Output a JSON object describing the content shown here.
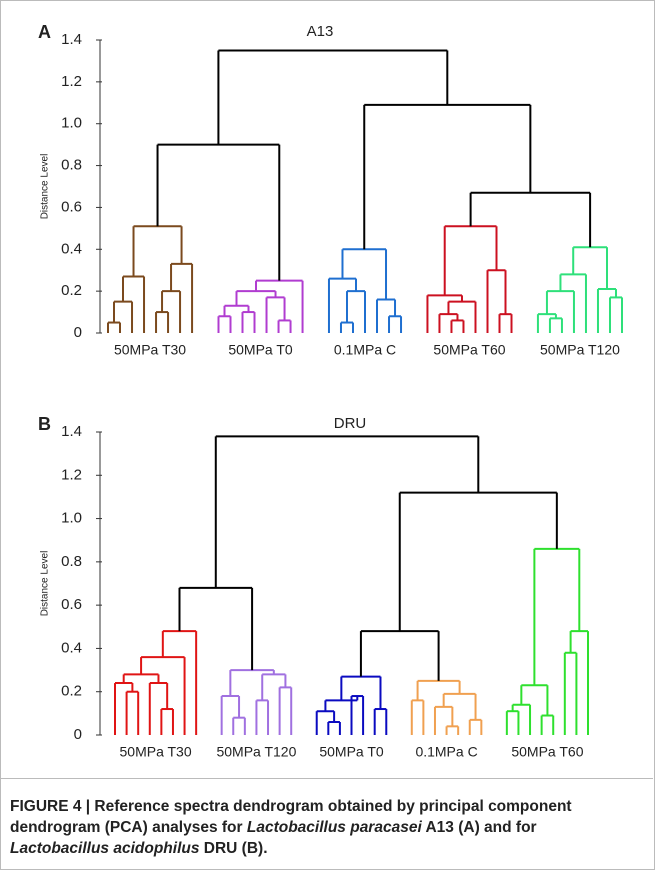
{
  "chart_data": [
    {
      "type": "dendrogram",
      "panel": "A",
      "title": "A13",
      "y_label": "Distance Level",
      "ylim": [
        0,
        1.4
      ],
      "yticks": [
        0,
        0.2,
        0.4,
        0.6,
        0.8,
        {
          "value": 1,
          "label": "1.0"
        },
        1.2,
        1.4
      ],
      "tree": {
        "height": 1.35,
        "children": [
          {
            "height": 0.9,
            "children": [
              {
                "label": "50MPa T30",
                "color": "#7b4a1e",
                "height": 0.51,
                "children": [
                  {
                    "height": 0.27,
                    "children": [
                      {
                        "height": 0.15,
                        "children": [
                          {
                            "height": 0.05,
                            "children": [
                              0,
                              0
                            ]
                          },
                          0
                        ]
                      },
                      0
                    ]
                  },
                  {
                    "height": 0.33,
                    "children": [
                      {
                        "height": 0.2,
                        "children": [
                          {
                            "height": 0.1,
                            "children": [
                              0,
                              0
                            ]
                          },
                          0
                        ]
                      },
                      0
                    ]
                  }
                ]
              },
              {
                "label": "50MPa T0",
                "color": "#b03cd0",
                "height": 0.25,
                "children": [
                  {
                    "height": 0.2,
                    "children": [
                      {
                        "height": 0.13,
                        "children": [
                          {
                            "height": 0.08,
                            "children": [
                              0,
                              0
                            ]
                          },
                          {
                            "height": 0.1,
                            "children": [
                              0,
                              0
                            ]
                          }
                        ]
                      },
                      {
                        "height": 0.17,
                        "children": [
                          0,
                          {
                            "height": 0.06,
                            "children": [
                              0,
                              0
                            ]
                          }
                        ]
                      }
                    ]
                  },
                  0
                ]
              }
            ]
          },
          {
            "height": 1.09,
            "children": [
              {
                "label": "0.1MPa C",
                "color": "#1f6fd0",
                "height": 0.4,
                "children": [
                  {
                    "height": 0.26,
                    "children": [
                      0,
                      {
                        "height": 0.2,
                        "children": [
                          {
                            "height": 0.05,
                            "children": [
                              0,
                              0
                            ]
                          },
                          0
                        ]
                      }
                    ]
                  },
                  {
                    "height": 0.16,
                    "children": [
                      0,
                      {
                        "height": 0.08,
                        "children": [
                          0,
                          0
                        ]
                      }
                    ]
                  }
                ]
              },
              {
                "height": 0.67,
                "children": [
                  {
                    "label": "50MPa T60",
                    "color": "#cc1020",
                    "height": 0.51,
                    "children": [
                      {
                        "height": 0.18,
                        "children": [
                          0,
                          {
                            "height": 0.15,
                            "children": [
                              {
                                "height": 0.09,
                                "children": [
                                  0,
                                  {
                                    "height": 0.06,
                                    "children": [
                                      0,
                                      0
                                    ]
                                  }
                                ]
                              },
                              0
                            ]
                          }
                        ]
                      },
                      {
                        "height": 0.3,
                        "children": [
                          0,
                          {
                            "height": 0.09,
                            "children": [
                              0,
                              0
                            ]
                          }
                        ]
                      }
                    ]
                  },
                  {
                    "label": "50MPa T120",
                    "color": "#2ee07a",
                    "height": 0.41,
                    "children": [
                      {
                        "height": 0.28,
                        "children": [
                          {
                            "height": 0.2,
                            "children": [
                              {
                                "height": 0.09,
                                "children": [
                                  0,
                                  {
                                    "height": 0.07,
                                    "children": [
                                      0,
                                      0
                                    ]
                                  }
                                ]
                              },
                              0
                            ]
                          },
                          0
                        ]
                      },
                      {
                        "height": 0.21,
                        "children": [
                          0,
                          {
                            "height": 0.17,
                            "children": [
                              0,
                              0
                            ]
                          }
                        ]
                      }
                    ]
                  }
                ]
              }
            ]
          }
        ]
      }
    },
    {
      "type": "dendrogram",
      "panel": "B",
      "title": "DRU",
      "y_label": "Distance Level",
      "ylim": [
        0,
        1.4
      ],
      "yticks": [
        0,
        0.2,
        0.4,
        0.6,
        0.8,
        {
          "value": 1,
          "label": "1.0"
        },
        1.2,
        1.4
      ],
      "tree": {
        "height": 1.38,
        "children": [
          {
            "height": 0.68,
            "children": [
              {
                "label": "50MPa T30",
                "color": "#e01414",
                "height": 0.48,
                "children": [
                  {
                    "height": 0.36,
                    "children": [
                      {
                        "height": 0.28,
                        "children": [
                          {
                            "height": 0.24,
                            "children": [
                              0,
                              {
                                "height": 0.2,
                                "children": [
                                  0,
                                  0
                                ]
                              }
                            ]
                          },
                          {
                            "height": 0.24,
                            "children": [
                              0,
                              {
                                "height": 0.12,
                                "children": [
                                  0,
                                  0
                                ]
                              }
                            ]
                          }
                        ]
                      },
                      0
                    ]
                  },
                  0
                ]
              },
              {
                "label": "50MPa T120",
                "color": "#a070e0",
                "height": 0.3,
                "children": [
                  {
                    "height": 0.18,
                    "children": [
                      0,
                      {
                        "height": 0.08,
                        "children": [
                          0,
                          0
                        ]
                      }
                    ]
                  },
                  {
                    "height": 0.28,
                    "children": [
                      {
                        "height": 0.16,
                        "children": [
                          0,
                          0
                        ]
                      },
                      {
                        "height": 0.22,
                        "children": [
                          0,
                          0
                        ]
                      }
                    ]
                  }
                ]
              }
            ]
          },
          {
            "height": 1.12,
            "children": [
              {
                "height": 0.48,
                "children": [
                  {
                    "label": "50MPa T0",
                    "color": "#0a0ac0",
                    "height": 0.27,
                    "children": [
                      {
                        "height": 0.16,
                        "children": [
                          {
                            "height": 0.11,
                            "children": [
                              0,
                              {
                                "height": 0.06,
                                "children": [
                                  0,
                                  0
                                ]
                              }
                            ]
                          },
                          {
                            "height": 0.18,
                            "children": [
                              0,
                              0
                            ]
                          }
                        ]
                      },
                      {
                        "height": 0.12,
                        "children": [
                          0,
                          0
                        ]
                      }
                    ]
                  },
                  {
                    "label": "0.1MPa C",
                    "color": "#f0a050",
                    "height": 0.25,
                    "children": [
                      {
                        "height": 0.16,
                        "children": [
                          0,
                          0
                        ]
                      },
                      {
                        "height": 0.19,
                        "children": [
                          {
                            "height": 0.13,
                            "children": [
                              0,
                              {
                                "height": 0.04,
                                "children": [
                                  0,
                                  0
                                ]
                              }
                            ]
                          },
                          {
                            "height": 0.07,
                            "children": [
                              0,
                              0
                            ]
                          }
                        ]
                      }
                    ]
                  }
                ]
              },
              {
                "label": "50MPa T60",
                "color": "#2ee02e",
                "height": 0.86,
                "children": [
                  {
                    "height": 0.23,
                    "children": [
                      {
                        "height": 0.14,
                        "children": [
                          {
                            "height": 0.11,
                            "children": [
                              0,
                              0
                            ]
                          },
                          0
                        ]
                      },
                      {
                        "height": 0.09,
                        "children": [
                          0,
                          0
                        ]
                      }
                    ]
                  },
                  {
                    "height": 0.48,
                    "children": [
                      {
                        "height": 0.38,
                        "children": [
                          0,
                          0
                        ]
                      },
                      0
                    ]
                  }
                ]
              }
            ]
          }
        ]
      }
    }
  ],
  "caption": [
    "FIGURE 4 | Reference spectra dendrogram obtained by principal component dendrogram (PCA) analyses for ",
    "Lactobacillus paracasei",
    " A13 (A) and for ",
    "Lactobacillus acidophilus",
    " DRU (B)."
  ]
}
